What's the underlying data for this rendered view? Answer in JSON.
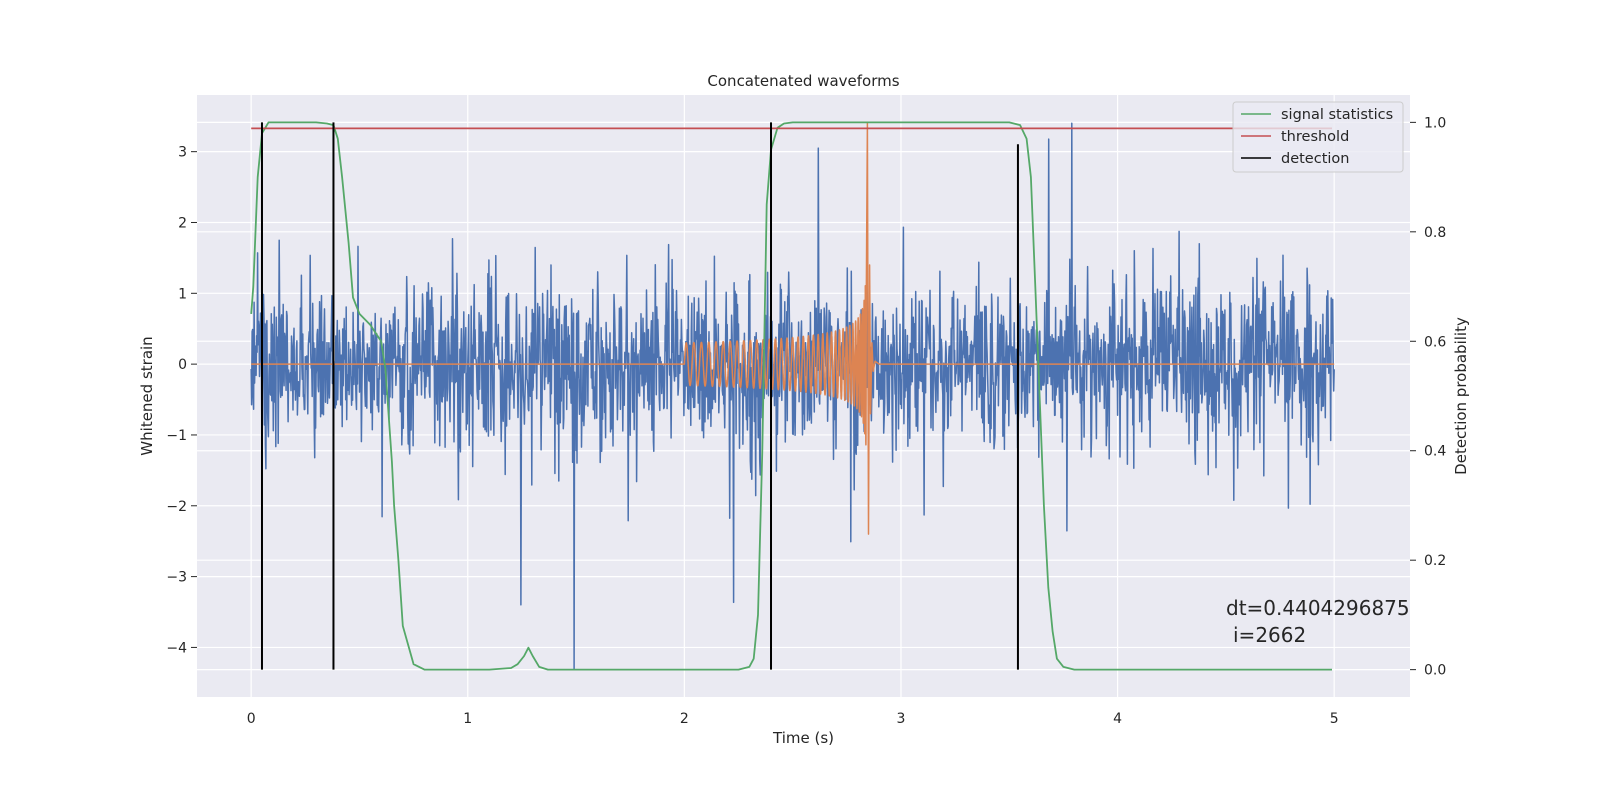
{
  "chart_data": {
    "type": "line",
    "title": "Concatenated waveforms",
    "xlabel": "Time (s)",
    "ylabel": "Whitened strain",
    "ylabel_right": "Detection probability",
    "xlim": [
      -0.25,
      5.35
    ],
    "ylim": [
      -4.7,
      3.8
    ],
    "ylim_right": [
      -0.05,
      1.05
    ],
    "xticks": [
      0,
      1,
      2,
      3,
      4,
      5
    ],
    "yticks": [
      -4,
      -3,
      -2,
      -1,
      0,
      1,
      2,
      3
    ],
    "yticks_right": [
      0.0,
      0.2,
      0.4,
      0.6,
      0.8,
      1.0
    ],
    "grid": true,
    "legend_position": "top-right",
    "legend": [
      {
        "label": "signal statistics",
        "color": "#55a868"
      },
      {
        "label": "threshold",
        "color": "#c44e52"
      },
      {
        "label": "detection",
        "color": "#000000"
      }
    ],
    "series": [
      {
        "key": "noise",
        "color": "#4c72b0",
        "axis": "left",
        "x_range": [
          0,
          5
        ],
        "samples": 2200,
        "sigma": 0.55,
        "spikes": [
          {
            "x": 1.49,
            "y": -4.3
          },
          {
            "x": 0.13,
            "y": 1.75
          }
        ]
      },
      {
        "key": "chirp",
        "color": "#dd8452",
        "axis": "left",
        "x_range": [
          0,
          5
        ],
        "start": 2.0,
        "merger": 2.84,
        "start_amplitude": 0.3,
        "peak_amplitude": 3.4,
        "min_amplitude": -2.5
      },
      {
        "name": "signal statistics",
        "color": "#55a868",
        "axis": "right",
        "x": [
          0.0,
          0.01,
          0.03,
          0.05,
          0.08,
          0.12,
          0.2,
          0.3,
          0.35,
          0.38,
          0.4,
          0.42,
          0.45,
          0.47,
          0.5,
          0.55,
          0.6,
          0.62,
          0.65,
          0.66,
          0.68,
          0.7,
          0.75,
          0.8,
          1.1,
          1.2,
          1.23,
          1.26,
          1.28,
          1.3,
          1.33,
          1.37,
          1.42,
          1.6,
          2.0,
          2.25,
          2.3,
          2.32,
          2.34,
          2.36,
          2.38,
          2.4,
          2.43,
          2.46,
          2.5,
          2.6,
          3.0,
          3.5,
          3.55,
          3.58,
          3.6,
          3.62,
          3.64,
          3.66,
          3.68,
          3.7,
          3.72,
          3.75,
          3.8,
          4.0,
          4.5,
          4.99
        ],
        "y": [
          0.65,
          0.7,
          0.9,
          0.98,
          1.0,
          1.0,
          1.0,
          1.0,
          0.998,
          0.995,
          0.97,
          0.9,
          0.78,
          0.68,
          0.65,
          0.63,
          0.6,
          0.55,
          0.38,
          0.3,
          0.2,
          0.08,
          0.01,
          0.0,
          0.0,
          0.003,
          0.01,
          0.025,
          0.04,
          0.025,
          0.005,
          0.0,
          0.0,
          0.0,
          0.0,
          0.0,
          0.005,
          0.02,
          0.1,
          0.4,
          0.85,
          0.95,
          0.99,
          0.998,
          1.0,
          1.0,
          1.0,
          1.0,
          0.995,
          0.97,
          0.9,
          0.7,
          0.5,
          0.3,
          0.15,
          0.07,
          0.02,
          0.005,
          0.0,
          0.0,
          0.0,
          0.0
        ]
      },
      {
        "name": "threshold",
        "color": "#c44e52",
        "axis": "right",
        "x": [
          0,
          4.99
        ],
        "y": [
          0.989,
          0.989
        ]
      }
    ],
    "detections": [
      {
        "x": 0.05,
        "y0": -0.0,
        "y1": 1.0
      },
      {
        "x": 0.38,
        "y0": -0.0,
        "y1": 1.0
      },
      {
        "x": 2.4,
        "y0": -0.0,
        "y1": 1.0
      },
      {
        "x": 3.54,
        "y0": -0.0,
        "y1": 0.96
      }
    ],
    "annotation": {
      "line1": "dt=0.4404296875",
      "line2": "i=2662",
      "x": 4.5,
      "y": -3.5
    }
  }
}
